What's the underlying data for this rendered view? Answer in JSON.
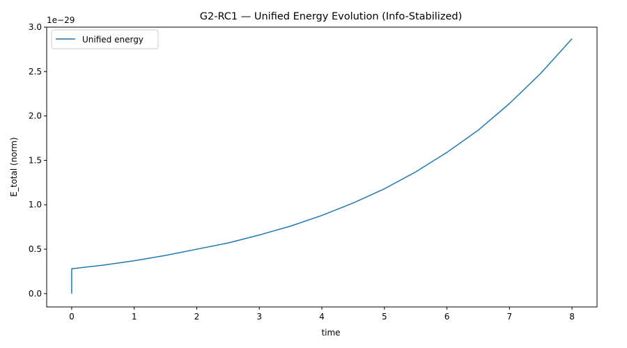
{
  "chart_data": {
    "type": "line",
    "title": "G2-RC1 — Unified Energy Evolution (Info-Stabilized)",
    "xlabel": "time",
    "ylabel": "E_total (norm)",
    "y_offset_label": "1e−29",
    "xlim": [
      -0.4,
      8.4
    ],
    "ylim": [
      -0.15,
      3.0
    ],
    "x_ticks": [
      0,
      1,
      2,
      3,
      4,
      5,
      6,
      7,
      8
    ],
    "x_tick_labels": [
      "0",
      "1",
      "2",
      "3",
      "4",
      "5",
      "6",
      "7",
      "8"
    ],
    "y_ticks": [
      0.0,
      0.5,
      1.0,
      1.5,
      2.0,
      2.5,
      3.0
    ],
    "y_tick_labels": [
      "0.0",
      "0.5",
      "1.0",
      "1.5",
      "2.0",
      "2.5",
      "3.0"
    ],
    "legend_position": "top-left",
    "grid": false,
    "series": [
      {
        "name": "Unified energy",
        "color": "#1f77b4",
        "x": [
          0,
          0,
          0.5,
          1,
          1.5,
          2,
          2.5,
          3,
          3.5,
          4,
          4.5,
          5,
          5.5,
          6,
          6.5,
          7,
          7.5,
          8
        ],
        "y": [
          0.0,
          0.28,
          0.32,
          0.37,
          0.43,
          0.5,
          0.57,
          0.66,
          0.76,
          0.88,
          1.02,
          1.18,
          1.37,
          1.59,
          1.84,
          2.14,
          2.48,
          2.87
        ]
      }
    ]
  }
}
